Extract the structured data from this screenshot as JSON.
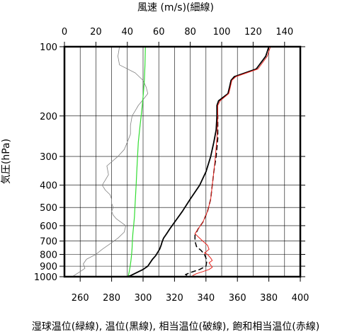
{
  "chart_data": {
    "type": "line",
    "top_axis": {
      "label": "風速 (m/s)(細線)",
      "range": [
        0,
        150
      ],
      "ticks": [
        0,
        20,
        40,
        60,
        80,
        100,
        120,
        140
      ]
    },
    "bottom_axis": {
      "label": "湿球温位(緑線), 温位(黒線), 相当温位(破線), 飽和相当温位(赤線)",
      "range": [
        250,
        400
      ],
      "ticks": [
        260,
        280,
        300,
        320,
        340,
        360,
        380,
        400
      ]
    },
    "y_axis": {
      "label": "気圧(hPa)",
      "scale": "log",
      "reversed": true,
      "range": [
        100,
        1000
      ],
      "ticks": [
        100,
        200,
        300,
        400,
        500,
        600,
        700,
        800,
        900,
        1000
      ]
    },
    "grid": true,
    "series": [
      {
        "id": "wind_speed",
        "axis": "top",
        "color": "#808080",
        "width": 0.8,
        "style": "solid",
        "points": [
          [
            35,
            100
          ],
          [
            34,
            110
          ],
          [
            35,
            120
          ],
          [
            45,
            130
          ],
          [
            50,
            140
          ],
          [
            52,
            150
          ],
          [
            53,
            160
          ],
          [
            50,
            170
          ],
          [
            47,
            180
          ],
          [
            45,
            190
          ],
          [
            43,
            200
          ],
          [
            42,
            220
          ],
          [
            42,
            240
          ],
          [
            40,
            260
          ],
          [
            38,
            280
          ],
          [
            34,
            300
          ],
          [
            27,
            330
          ],
          [
            28,
            360
          ],
          [
            26,
            380
          ],
          [
            24,
            400
          ],
          [
            26,
            420
          ],
          [
            29,
            440
          ],
          [
            30,
            460
          ],
          [
            30,
            480
          ],
          [
            31,
            500
          ],
          [
            30,
            520
          ],
          [
            31,
            540
          ],
          [
            33,
            560
          ],
          [
            36,
            580
          ],
          [
            39,
            600
          ],
          [
            38,
            640
          ],
          [
            34,
            680
          ],
          [
            29,
            720
          ],
          [
            24,
            760
          ],
          [
            20,
            800
          ],
          [
            14,
            840
          ],
          [
            12,
            880
          ],
          [
            13,
            920
          ],
          [
            10,
            950
          ],
          [
            5,
            1000
          ]
        ]
      },
      {
        "id": "wet_bulb_potential_temperature",
        "axis": "bottom",
        "color": "#33dd33",
        "width": 1.2,
        "style": "solid",
        "points": [
          [
            301.5,
            100
          ],
          [
            301.2,
            120
          ],
          [
            300.8,
            140
          ],
          [
            300.2,
            160
          ],
          [
            299.5,
            180
          ],
          [
            298.8,
            200
          ],
          [
            297.8,
            230
          ],
          [
            297,
            260
          ],
          [
            296.5,
            300
          ],
          [
            296,
            350
          ],
          [
            295.6,
            400
          ],
          [
            295.2,
            450
          ],
          [
            294.8,
            500
          ],
          [
            294.5,
            550
          ],
          [
            294,
            600
          ],
          [
            293.5,
            650
          ],
          [
            293.2,
            700
          ],
          [
            293,
            750
          ],
          [
            292.7,
            800
          ],
          [
            292.3,
            850
          ],
          [
            291.8,
            900
          ],
          [
            291.2,
            950
          ],
          [
            290.5,
            1000
          ]
        ]
      },
      {
        "id": "potential_temperature",
        "axis": "bottom",
        "color": "#000000",
        "width": 1.8,
        "style": "solid",
        "points": [
          [
            380,
            100
          ],
          [
            378,
            110
          ],
          [
            372,
            125
          ],
          [
            358,
            135
          ],
          [
            356,
            140
          ],
          [
            355,
            150
          ],
          [
            354,
            160
          ],
          [
            348,
            172
          ],
          [
            347,
            180
          ],
          [
            347,
            200
          ],
          [
            346.5,
            230
          ],
          [
            345,
            260
          ],
          [
            343,
            300
          ],
          [
            340,
            350
          ],
          [
            336,
            400
          ],
          [
            330,
            460
          ],
          [
            325,
            520
          ],
          [
            320,
            580
          ],
          [
            317,
            620
          ],
          [
            315,
            650
          ],
          [
            313,
            680
          ],
          [
            312,
            710
          ],
          [
            311.5,
            730
          ],
          [
            310.5,
            760
          ],
          [
            309,
            790
          ],
          [
            308,
            810
          ],
          [
            306,
            840
          ],
          [
            304.5,
            870
          ],
          [
            303,
            900
          ],
          [
            300,
            930
          ],
          [
            296,
            960
          ],
          [
            292,
            990
          ],
          [
            290,
            1000
          ]
        ]
      },
      {
        "id": "equivalent_potential_temperature",
        "axis": "bottom",
        "color": "#000000",
        "width": 1.5,
        "style": "dashed",
        "points": [
          [
            380,
            100
          ],
          [
            378,
            110
          ],
          [
            372,
            125
          ],
          [
            358,
            135
          ],
          [
            356,
            140
          ],
          [
            355,
            150
          ],
          [
            354,
            160
          ],
          [
            348,
            172
          ],
          [
            347,
            180
          ],
          [
            347.5,
            200
          ],
          [
            347.5,
            250
          ],
          [
            346.5,
            300
          ],
          [
            345,
            350
          ],
          [
            344,
            400
          ],
          [
            343,
            460
          ],
          [
            341,
            520
          ],
          [
            338,
            580
          ],
          [
            335,
            620
          ],
          [
            333,
            660
          ],
          [
            333,
            700
          ],
          [
            334,
            740
          ],
          [
            337,
            770
          ],
          [
            339,
            800
          ],
          [
            340,
            830
          ],
          [
            340.5,
            860
          ],
          [
            340,
            900
          ],
          [
            336,
            930
          ],
          [
            330,
            960
          ],
          [
            327,
            980
          ],
          [
            330,
            1000
          ]
        ]
      },
      {
        "id": "saturated_equivalent_potential_temperature",
        "axis": "bottom",
        "color": "#e8231d",
        "width": 1.0,
        "style": "solid",
        "points": [
          [
            381,
            100
          ],
          [
            379,
            110
          ],
          [
            373,
            125
          ],
          [
            359,
            135
          ],
          [
            356.5,
            140
          ],
          [
            355.5,
            150
          ],
          [
            354.5,
            160
          ],
          [
            349,
            172
          ],
          [
            347.5,
            180
          ],
          [
            347.5,
            200
          ],
          [
            347,
            250
          ],
          [
            346,
            300
          ],
          [
            345,
            350
          ],
          [
            344,
            400
          ],
          [
            343,
            460
          ],
          [
            341,
            520
          ],
          [
            338,
            580
          ],
          [
            335,
            620
          ],
          [
            333,
            650
          ],
          [
            335,
            670
          ],
          [
            338,
            700
          ],
          [
            341,
            730
          ],
          [
            342,
            760
          ],
          [
            339,
            790
          ],
          [
            341,
            800
          ],
          [
            343,
            830
          ],
          [
            344,
            850
          ],
          [
            342,
            870
          ],
          [
            343,
            890
          ],
          [
            344,
            910
          ],
          [
            342,
            930
          ],
          [
            338,
            950
          ],
          [
            334,
            970
          ],
          [
            332,
            985
          ],
          [
            331,
            1000
          ]
        ]
      }
    ]
  }
}
